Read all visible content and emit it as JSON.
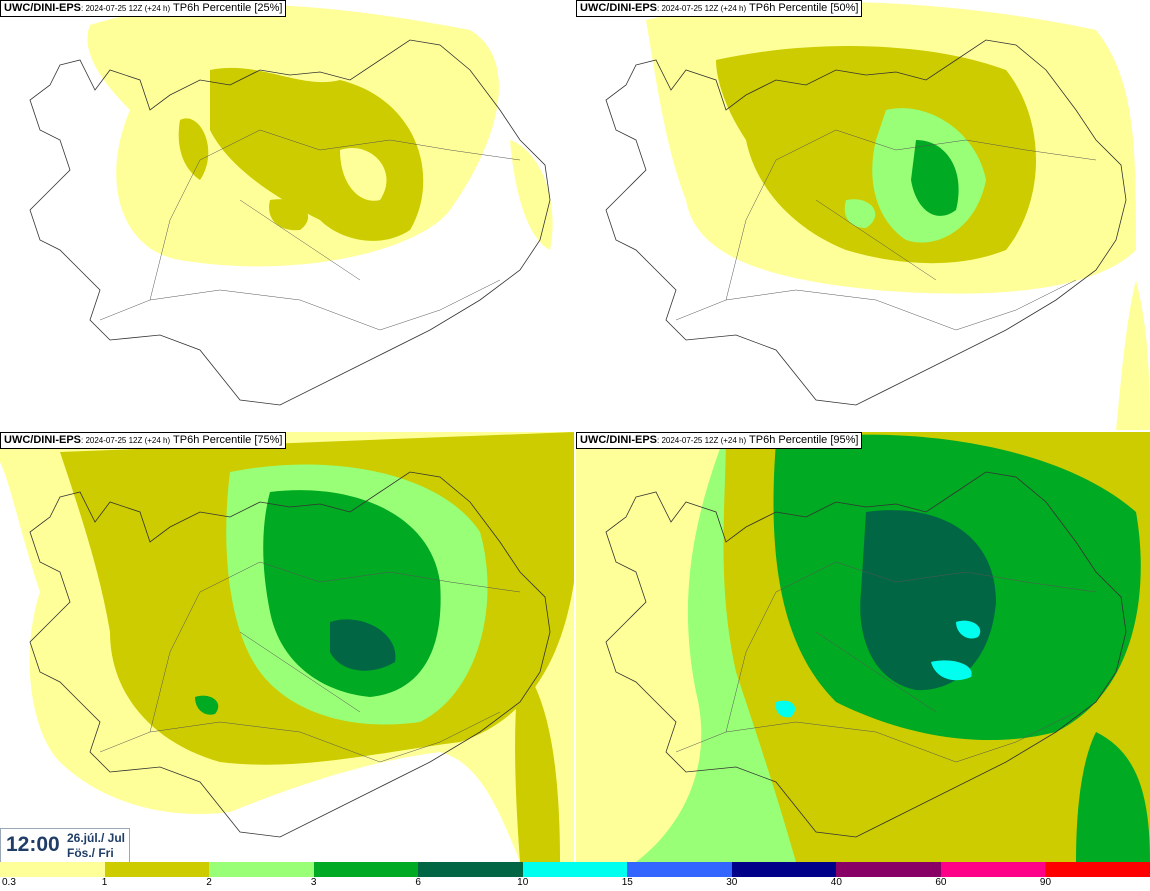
{
  "panels": [
    {
      "model": "UWC/DINI-EPS",
      "run": ": 2024-07-25 12Z (+24 h)",
      "label": "TP6h Percentile [25%]"
    },
    {
      "model": "UWC/DINI-EPS",
      "run": ": 2024-07-25 12Z (+24 h)",
      "label": "TP6h Percentile [50%]"
    },
    {
      "model": "UWC/DINI-EPS",
      "run": ": 2024-07-25 12Z (+24 h)",
      "label": "TP6h Percentile [75%]"
    },
    {
      "model": "UWC/DINI-EPS",
      "run": ": 2024-07-25 12Z (+24 h)",
      "label": "TP6h Percentile [95%]"
    }
  ],
  "valid_time": {
    "time": "12:00",
    "date_line1": "26.júl./ Jul",
    "date_line2": "Fös./ Fri"
  },
  "colorbar": [
    {
      "label": "0.3",
      "color": "#ffff99"
    },
    {
      "label": "1",
      "color": "#cccc00"
    },
    {
      "label": "2",
      "color": "#99ff77"
    },
    {
      "label": "3",
      "color": "#00aa22"
    },
    {
      "label": "6",
      "color": "#006644"
    },
    {
      "label": "10",
      "color": "#00ffee"
    },
    {
      "label": "15",
      "color": "#3366ff"
    },
    {
      "label": "30",
      "color": "#000088"
    },
    {
      "label": "40",
      "color": "#880066"
    },
    {
      "label": "60",
      "color": "#ff0088"
    },
    {
      "label": "90",
      "color": "#ff0000"
    }
  ]
}
